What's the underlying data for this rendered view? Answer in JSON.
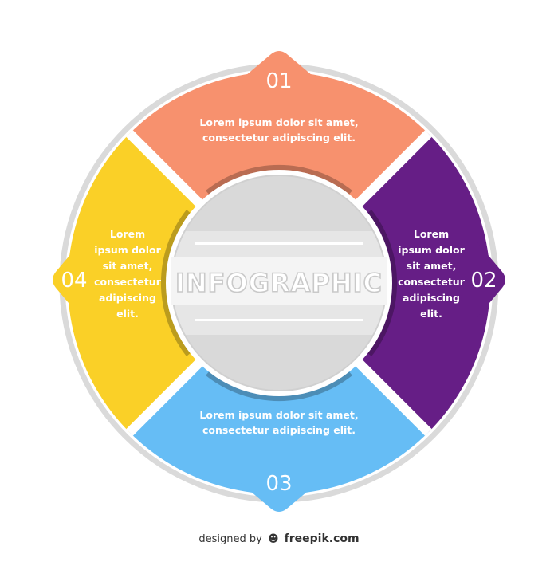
{
  "center": {
    "title": "INFOGRAPHIC"
  },
  "segments": [
    {
      "number": "01",
      "lines": [
        "Lorem ipsum dolor sit amet,",
        "consectetur adipiscing elit."
      ],
      "color": "#f7916e"
    },
    {
      "number": "02",
      "lines": [
        "Lorem",
        "ipsum dolor",
        "sit amet,",
        "consectetur",
        "adipiscing",
        "elit."
      ],
      "color": "#661e86"
    },
    {
      "number": "03",
      "lines": [
        "Lorem ipsum dolor sit amet,",
        "consectetur adipiscing elit."
      ],
      "color": "#66bdf5"
    },
    {
      "number": "04",
      "lines": [
        "Lorem",
        "ipsum dolor",
        "sit amet,",
        "consectetur",
        "adipiscing",
        "elit."
      ],
      "color": "#fad027"
    }
  ],
  "credit": {
    "prefix": "designed by",
    "logo_icon": "freepik-logo-icon",
    "brand": "freepik.com"
  }
}
